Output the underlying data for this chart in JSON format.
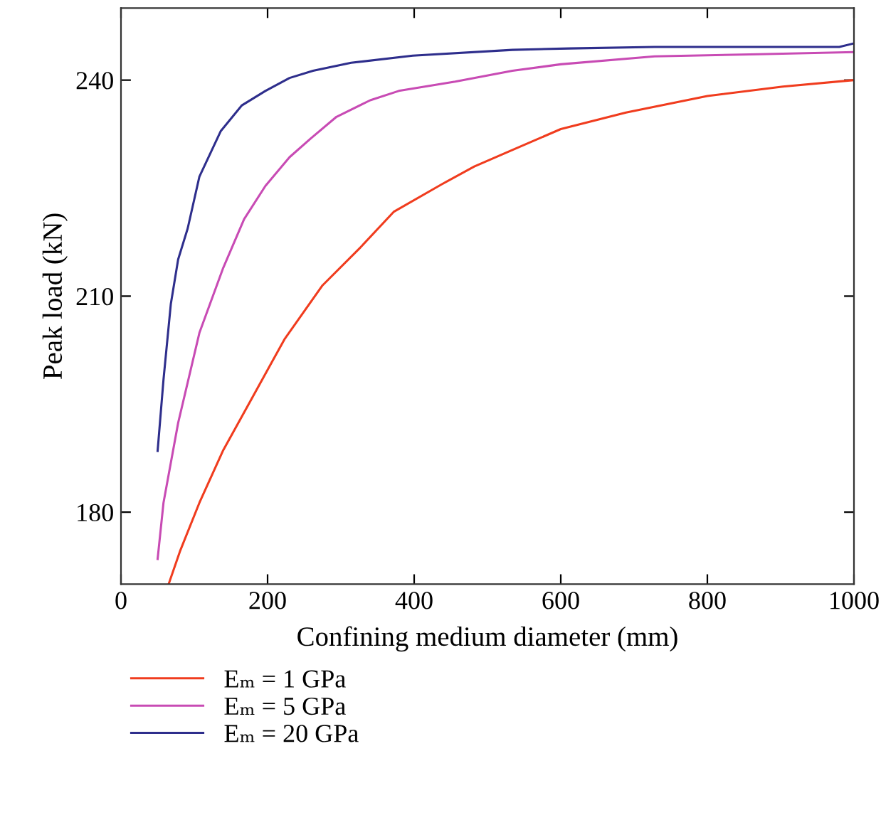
{
  "chart_data": {
    "type": "line",
    "xlabel": "Confining medium diameter (mm)",
    "ylabel": "Peak load (kN)",
    "xlim": [
      0,
      1000
    ],
    "xticks": [
      0,
      200,
      400,
      600,
      800,
      1000
    ],
    "ylim": [
      170,
      250
    ],
    "yticks": [
      180,
      210,
      240
    ],
    "grid": false,
    "legend": "bottom left",
    "marker": "none",
    "line_style": "solid",
    "series": [
      {
        "name": "Eₘ = 1 GPa",
        "color": "#f03c1e",
        "x": [
          65,
          81,
          107,
          139,
          178,
          223,
          275,
          327,
          372,
          437,
          482,
          534,
          600,
          689,
          800,
          903,
          1000
        ],
        "values": [
          170,
          174.7,
          181.3,
          188.5,
          195.7,
          204.0,
          211.5,
          216.8,
          221.7,
          225.5,
          228.0,
          230.3,
          233.2,
          235.5,
          237.8,
          239.1,
          240.0
        ]
      },
      {
        "name": "Eₘ = 5 GPa",
        "color": "#c84bb4",
        "x": [
          50,
          58,
          78,
          107,
          139,
          168,
          197,
          230,
          259,
          294,
          340,
          379,
          456,
          534,
          600,
          728,
          870,
          1000
        ],
        "values": [
          173.5,
          181.3,
          192.4,
          204.9,
          213.8,
          220.7,
          225.3,
          229.3,
          231.9,
          234.9,
          237.2,
          238.5,
          239.8,
          241.3,
          242.2,
          243.3,
          243.6,
          243.9
        ]
      },
      {
        "name": "Eₘ = 20 GPa",
        "color": "#2e2e8c",
        "x": [
          50,
          58,
          68,
          78,
          91,
          107,
          136,
          165,
          197,
          230,
          262,
          314,
          398,
          534,
          612,
          728,
          980,
          1000
        ],
        "values": [
          188.5,
          198.4,
          208.9,
          215.1,
          219.4,
          226.6,
          232.9,
          236.5,
          238.5,
          240.3,
          241.3,
          242.4,
          243.4,
          244.2,
          244.4,
          244.6,
          244.6,
          245.1
        ]
      }
    ]
  }
}
